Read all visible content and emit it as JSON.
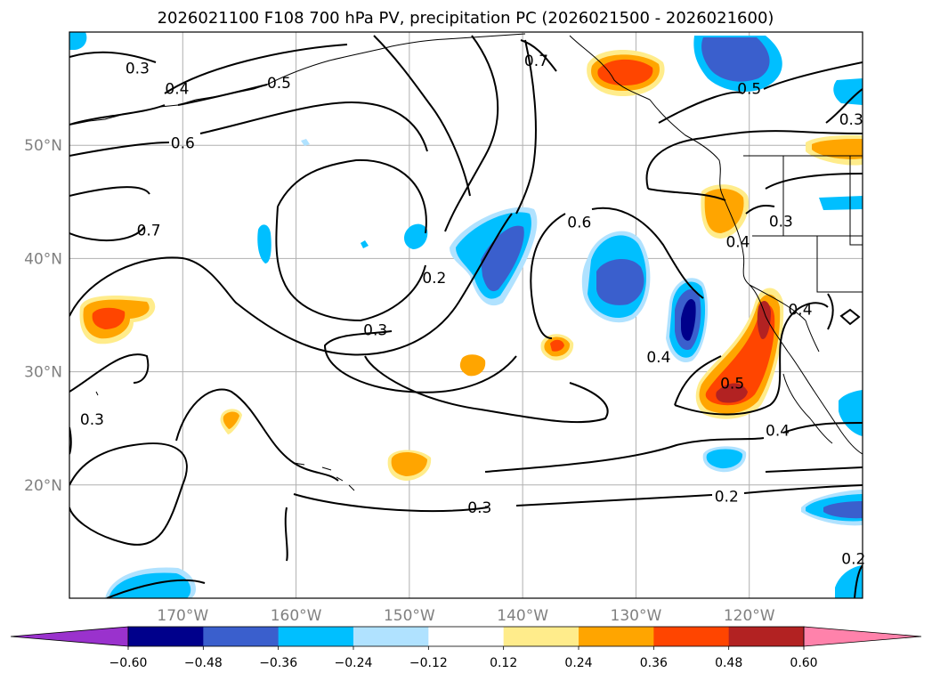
{
  "chart_data": {
    "type": "contour-map",
    "title": "2026021100 F108 700 hPa PV, precipitation PC (2026021500 - 2026021600)",
    "lon_range": [
      -180,
      -110
    ],
    "lat_range": [
      10,
      60
    ],
    "lon_ticks": [
      {
        "value": -170,
        "label": "170°W"
      },
      {
        "value": -160,
        "label": "160°W"
      },
      {
        "value": -150,
        "label": "150°W"
      },
      {
        "value": -140,
        "label": "140°W"
      },
      {
        "value": -130,
        "label": "130°W"
      },
      {
        "value": -120,
        "label": "120°W"
      }
    ],
    "lat_ticks": [
      {
        "value": 20,
        "label": "20°N"
      },
      {
        "value": 30,
        "label": "30°N"
      },
      {
        "value": 40,
        "label": "40°N"
      },
      {
        "value": 50,
        "label": "50°N"
      }
    ],
    "contour_labels": [
      {
        "text": "0.3",
        "lon": -174.0,
        "lat": 56.8
      },
      {
        "text": "0.4",
        "lon": -170.5,
        "lat": 55.0
      },
      {
        "text": "0.5",
        "lon": -161.5,
        "lat": 55.5
      },
      {
        "text": "0.6",
        "lon": -170.0,
        "lat": 50.2
      },
      {
        "text": "0.7",
        "lon": -173.0,
        "lat": 42.5
      },
      {
        "text": "0.2",
        "lon": -147.8,
        "lat": 38.3
      },
      {
        "text": "0.3",
        "lon": -153.0,
        "lat": 33.7
      },
      {
        "text": "0.6",
        "lon": -135.0,
        "lat": 43.2
      },
      {
        "text": "0.7",
        "lon": -138.8,
        "lat": 57.5
      },
      {
        "text": "0.5",
        "lon": -120.0,
        "lat": 55.0
      },
      {
        "text": "0.3",
        "lon": -111.0,
        "lat": 52.3
      },
      {
        "text": "0.4",
        "lon": -121.0,
        "lat": 41.5
      },
      {
        "text": "0.3",
        "lon": -117.2,
        "lat": 43.3
      },
      {
        "text": "0.4",
        "lon": -115.5,
        "lat": 35.5
      },
      {
        "text": "0.4",
        "lon": -128.0,
        "lat": 31.3
      },
      {
        "text": "0.5",
        "lon": -121.5,
        "lat": 29.0
      },
      {
        "text": "0.4",
        "lon": -117.5,
        "lat": 24.8
      },
      {
        "text": "0.3",
        "lon": -178.0,
        "lat": 25.8
      },
      {
        "text": "0.3",
        "lon": -143.8,
        "lat": 18.0
      },
      {
        "text": "0.2",
        "lon": -122.0,
        "lat": 19.0
      },
      {
        "text": "0.2",
        "lon": -110.8,
        "lat": 13.5
      }
    ],
    "colorbar": {
      "ticks": [
        "−0.60",
        "−0.48",
        "−0.36",
        "−0.24",
        "−0.12",
        "0.12",
        "0.24",
        "0.36",
        "0.48",
        "0.60"
      ],
      "colors": [
        "#9a32cd",
        "#00008b",
        "#3a5fcd",
        "#00bfff",
        "#b0e2ff",
        "#ffffff",
        "#ffec8b",
        "#ffa500",
        "#ff4500",
        "#b22222",
        "#ff82ab"
      ],
      "extend": "both"
    }
  }
}
